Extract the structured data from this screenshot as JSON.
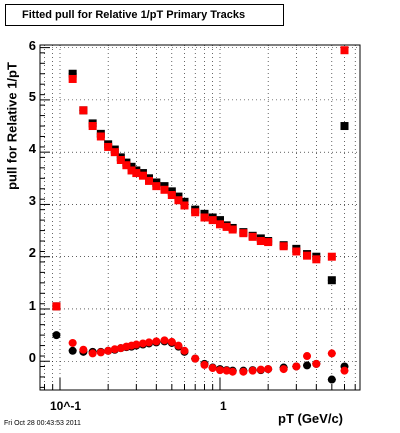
{
  "chart_data": {
    "type": "scatter",
    "title": "Fitted pull for Relative 1/pT  Primary Tracks",
    "xlabel": "pT (GeV/c)",
    "ylabel": "pull for Relative 1/pT",
    "xscale": "log",
    "xlim": [
      0.075,
      7.5
    ],
    "ylim": [
      -0.55,
      6.05
    ],
    "x_tick_labels": [
      "10^-1",
      "1"
    ],
    "y_tick_labels": [
      "0",
      "1",
      "2",
      "3",
      "4",
      "5",
      "6"
    ],
    "grid": true,
    "footer": "Fri Oct 28 00:43:53 2011",
    "series": [
      {
        "color": "#000000",
        "x": [
          0.095,
          0.12,
          0.14,
          0.16,
          0.18,
          0.2,
          0.22,
          0.24,
          0.26,
          0.28,
          0.3,
          0.33,
          0.36,
          0.4,
          0.45,
          0.5,
          0.55,
          0.6,
          0.7,
          0.8,
          0.9,
          1.0,
          1.1,
          1.2,
          1.4,
          1.6,
          1.8,
          2.0,
          2.5,
          3.0,
          3.5,
          4.0,
          5.0,
          6.0
        ],
        "y": [
          1.05,
          5.5,
          4.8,
          4.55,
          4.35,
          4.15,
          4.05,
          3.9,
          3.8,
          3.72,
          3.65,
          3.6,
          3.5,
          3.42,
          3.35,
          3.25,
          3.15,
          3.05,
          2.9,
          2.82,
          2.75,
          2.7,
          2.6,
          2.55,
          2.47,
          2.4,
          2.35,
          2.3,
          2.22,
          2.15,
          2.05,
          2.0,
          1.55,
          4.5
        ]
      },
      {
        "color": "#ff0000",
        "x": [
          0.095,
          0.12,
          0.14,
          0.16,
          0.18,
          0.2,
          0.22,
          0.24,
          0.26,
          0.28,
          0.3,
          0.33,
          0.36,
          0.4,
          0.45,
          0.5,
          0.55,
          0.6,
          0.7,
          0.8,
          0.9,
          1.0,
          1.1,
          1.2,
          1.4,
          1.6,
          1.8,
          2.0,
          2.5,
          3.0,
          3.5,
          4.0,
          5.0,
          6.0
        ],
        "y": [
          1.05,
          5.4,
          4.8,
          4.5,
          4.3,
          4.1,
          4.0,
          3.85,
          3.75,
          3.65,
          3.6,
          3.55,
          3.45,
          3.35,
          3.28,
          3.18,
          3.08,
          2.98,
          2.85,
          2.75,
          2.7,
          2.62,
          2.57,
          2.52,
          2.45,
          2.38,
          2.3,
          2.28,
          2.2,
          2.1,
          2.02,
          1.95,
          2.0,
          5.95
        ]
      },
      {
        "color": "#000000",
        "x": [
          0.095,
          0.12,
          0.14,
          0.16,
          0.18,
          0.2,
          0.22,
          0.24,
          0.26,
          0.28,
          0.3,
          0.33,
          0.36,
          0.4,
          0.45,
          0.5,
          0.55,
          0.6,
          0.7,
          0.8,
          0.9,
          1.0,
          1.1,
          1.2,
          1.4,
          1.6,
          1.8,
          2.0,
          2.5,
          3.0,
          3.5,
          4.0,
          5.0,
          6.0
        ],
        "y": [
          0.5,
          0.2,
          0.18,
          0.18,
          0.18,
          0.2,
          0.22,
          0.25,
          0.27,
          0.28,
          0.3,
          0.32,
          0.34,
          0.36,
          0.38,
          0.35,
          0.28,
          0.18,
          0.05,
          -0.05,
          -0.12,
          -0.15,
          -0.17,
          -0.18,
          -0.18,
          -0.17,
          -0.17,
          -0.15,
          -0.12,
          -0.1,
          -0.08,
          -0.05,
          -0.35,
          -0.1
        ]
      },
      {
        "color": "#ff0000",
        "x": [
          0.095,
          0.12,
          0.14,
          0.16,
          0.18,
          0.2,
          0.22,
          0.24,
          0.26,
          0.28,
          0.3,
          0.33,
          0.36,
          0.4,
          0.45,
          0.5,
          0.55,
          0.6,
          0.7,
          0.8,
          0.9,
          1.0,
          1.1,
          1.2,
          1.4,
          1.6,
          1.8,
          2.0,
          2.5,
          3.0,
          3.5,
          4.0,
          5.0,
          6.0
        ],
        "y": [
          1.05,
          0.35,
          0.22,
          0.15,
          0.17,
          0.2,
          0.23,
          0.25,
          0.28,
          0.3,
          0.32,
          0.34,
          0.36,
          0.38,
          0.4,
          0.37,
          0.3,
          0.2,
          0.05,
          -0.07,
          -0.13,
          -0.17,
          -0.18,
          -0.2,
          -0.2,
          -0.18,
          -0.16,
          -0.15,
          -0.15,
          -0.1,
          0.1,
          -0.05,
          0.15,
          -0.18
        ]
      }
    ]
  }
}
